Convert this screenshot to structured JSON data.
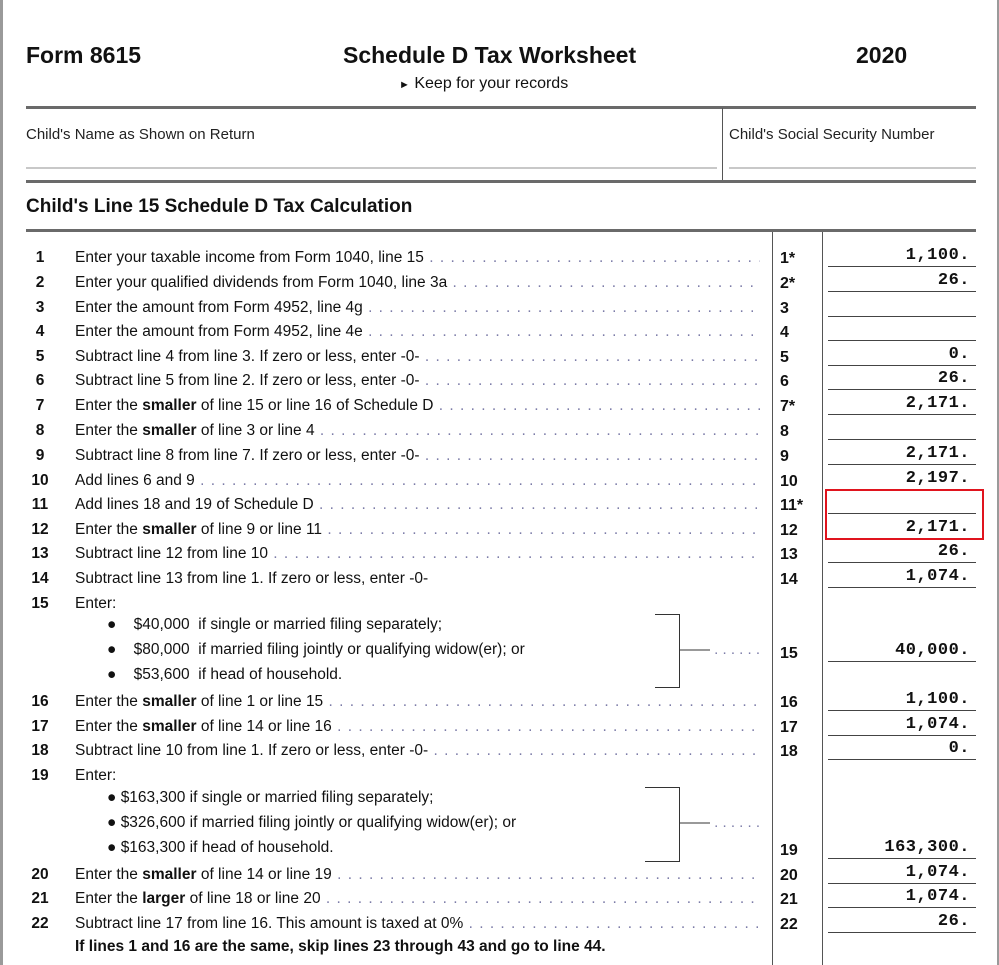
{
  "header": {
    "form": "Form 8615",
    "title": "Schedule D  Tax Worksheet",
    "year": "2020",
    "subtitle": "Keep for your records"
  },
  "fields": {
    "name_label": "Child's Name as Shown on Return",
    "ssn_label": "Child's Social Security Number"
  },
  "section_title": "Child's Line 15  Schedule D Tax Calculation",
  "highlight_color": "#e0141e",
  "lines": [
    {
      "n": "1",
      "pre": "Enter your taxable income from Form 1040, line 15",
      "bold": "",
      "post": "",
      "ref": "1*",
      "value": "1,100."
    },
    {
      "n": "2",
      "pre": "Enter your qualified dividends from Form 1040, line 3a",
      "bold": "",
      "post": "",
      "ref": "2*",
      "value": "26."
    },
    {
      "n": "3",
      "pre": "Enter the amount from Form 4952, line 4g",
      "bold": "",
      "post": "",
      "ref": "3",
      "value": ""
    },
    {
      "n": "4",
      "pre": "Enter the amount from Form 4952, line 4e",
      "bold": "",
      "post": "",
      "ref": "4",
      "value": ""
    },
    {
      "n": "5",
      "pre": "Subtract line 4 from line 3. If zero or less, enter -0-",
      "bold": "",
      "post": "",
      "ref": "5",
      "value": "0."
    },
    {
      "n": "6",
      "pre": "Subtract line 5 from line 2. If zero or less, enter -0-",
      "bold": "",
      "post": "",
      "ref": "6",
      "value": "26."
    },
    {
      "n": "7",
      "pre": "Enter the ",
      "bold": "smaller",
      "post": " of line 15 or line 16 of Schedule D",
      "ref": "7*",
      "value": "2,171."
    },
    {
      "n": "8",
      "pre": "Enter the ",
      "bold": "smaller",
      "post": " of line 3 or line 4",
      "ref": "8",
      "value": ""
    },
    {
      "n": "9",
      "pre": "Subtract line 8 from line 7. If zero or less, enter -0-",
      "bold": "",
      "post": "",
      "ref": "9",
      "value": "2,171."
    },
    {
      "n": "10",
      "pre": "Add lines 6 and 9",
      "bold": "",
      "post": "",
      "ref": "10",
      "value": "2,197."
    },
    {
      "n": "11",
      "pre": "Add lines 18 and 19 of Schedule D",
      "bold": "",
      "post": "",
      "ref": "11*",
      "value": ""
    },
    {
      "n": "12",
      "pre": "Enter the ",
      "bold": "smaller",
      "post": " of line 9 or line 11",
      "ref": "12",
      "value": "2,171."
    },
    {
      "n": "13",
      "pre": "Subtract line 12 from line 10",
      "bold": "",
      "post": "",
      "ref": "13",
      "value": "26."
    },
    {
      "n": "14",
      "pre": "Subtract line 13 from line 1. If zero or less, enter -0-",
      "bold": "",
      "post": "",
      "ref": "14",
      "value": "1,074."
    },
    {
      "n": "15",
      "pre": "Enter:",
      "bold": "",
      "post": "",
      "ref": "",
      "value": ""
    },
    {
      "n": "16",
      "pre": "Enter the ",
      "bold": "smaller",
      "post": " of line 1 or line 15",
      "ref": "16",
      "value": "1,100."
    },
    {
      "n": "17",
      "pre": "Enter the ",
      "bold": "smaller",
      "post": " of line 14 or line 16",
      "ref": "17",
      "value": "1,074."
    },
    {
      "n": "18",
      "pre": "Subtract line 10 from line 1. If zero or less, enter -0-",
      "bold": "",
      "post": "",
      "ref": "18",
      "value": "0."
    },
    {
      "n": "19",
      "pre": "Enter:",
      "bold": "",
      "post": "",
      "ref": "",
      "value": ""
    },
    {
      "n": "20",
      "pre": "Enter the ",
      "bold": "smaller",
      "post": " of line 14 or line 19",
      "ref": "20",
      "value": "1,074."
    },
    {
      "n": "21",
      "pre": "Enter the ",
      "bold": "larger",
      "post": " of line 18 or line 20",
      "ref": "21",
      "value": "1,074."
    },
    {
      "n": "22",
      "pre": "Subtract line 17 from line 16. This amount is taxed at 0%",
      "bold": "",
      "post": "",
      "ref": "22",
      "value": "26."
    }
  ],
  "line15": {
    "bullets": [
      {
        "amount": "$40,000",
        "text": "if single or married filing separately;"
      },
      {
        "amount": "$80,000",
        "text": "if married filing jointly or qualifying widow(er); or"
      },
      {
        "amount": "$53,600",
        "text": "if head of household."
      }
    ],
    "ref": "15",
    "value": "40,000."
  },
  "line19": {
    "bullets": [
      "$163,300 if single or married filing separately;",
      "$326,600 if married filing jointly or qualifying widow(er); or",
      "$163,300 if head of household."
    ],
    "ref": "19",
    "value": "163,300."
  },
  "note": "If lines 1 and 16 are the same, skip lines 23 through 43 and go to line 44."
}
